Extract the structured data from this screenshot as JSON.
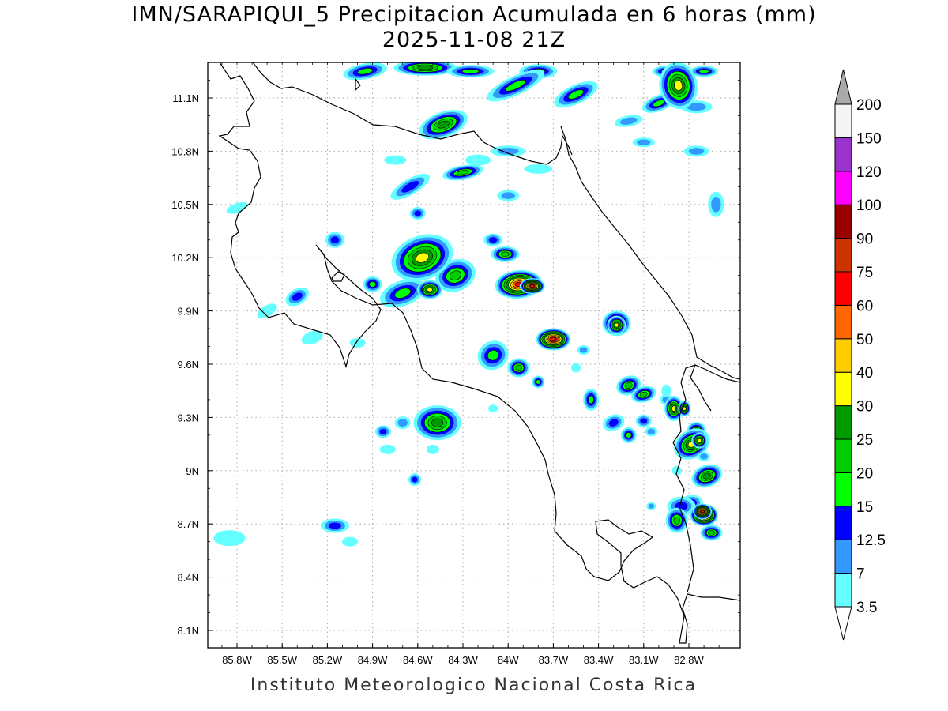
{
  "title_line1": "IMN/SARAPIQUI_5 Precipitacion Acumulada en 6 horas (mm)",
  "title_line2": "2025-11-08 21Z",
  "footer": "Instituto Meteorologico Nacional Costa Rica",
  "map": {
    "lon_range": [
      -86.0,
      -82.6
    ],
    "lat_range": [
      8.0,
      11.3
    ],
    "lon_ticks": [
      "85.8W",
      "85.5W",
      "85.2W",
      "84.9W",
      "84.6W",
      "84.3W",
      "84W",
      "83.7W",
      "83.4W",
      "83.1W",
      "82.8W"
    ],
    "lat_ticks": [
      "11.1N",
      "10.8N",
      "10.5N",
      "10.2N",
      "9.9N",
      "9.6N",
      "9.3N",
      "9N",
      "8.7N",
      "8.4N",
      "8.1N"
    ]
  },
  "colorbar": {
    "levels": [
      "3.5",
      "7",
      "12.5",
      "15",
      "20",
      "25",
      "30",
      "40",
      "50",
      "60",
      "75",
      "90",
      "100",
      "120",
      "150",
      "200"
    ],
    "colors": [
      "#66ffff",
      "#3399ff",
      "#0000ff",
      "#00ff00",
      "#00cc00",
      "#009900",
      "#ffff00",
      "#ffcc00",
      "#ff6600",
      "#ff0000",
      "#cc3300",
      "#990000",
      "#ff00ff",
      "#9933cc",
      "#f5f5f5",
      "#aaaaaa"
    ]
  },
  "precip_cells": [
    {
      "lon": -84.57,
      "lat": 10.2,
      "level": "30"
    },
    {
      "lon": -84.52,
      "lat": 10.02,
      "level": "30"
    },
    {
      "lon": -83.93,
      "lat": 10.05,
      "level": "60"
    },
    {
      "lon": -83.84,
      "lat": 10.04,
      "level": "75"
    },
    {
      "lon": -83.7,
      "lat": 9.74,
      "level": "75"
    },
    {
      "lon": -84.43,
      "lat": 10.95,
      "level": "25"
    },
    {
      "lon": -82.87,
      "lat": 11.17,
      "level": "30"
    },
    {
      "lon": -83.28,
      "lat": 9.82,
      "level": "30"
    },
    {
      "lon": -82.71,
      "lat": 8.77,
      "level": "75"
    },
    {
      "lon": -82.73,
      "lat": 9.17,
      "level": "30"
    },
    {
      "lon": -82.83,
      "lat": 9.35,
      "level": "30"
    }
  ]
}
